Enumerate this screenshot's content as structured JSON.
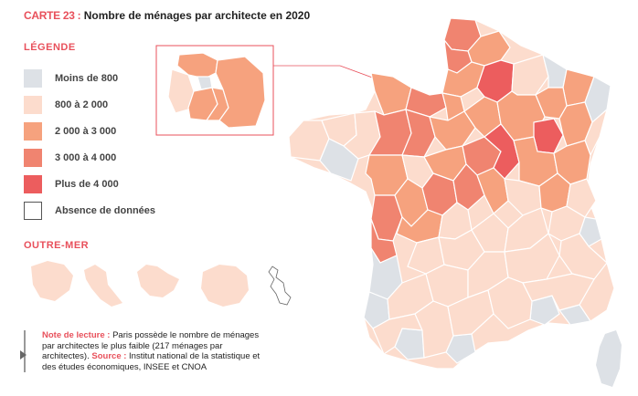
{
  "title": {
    "code": "CARTE 23 :",
    "text": "Nombre de ménages par architecte en 2020"
  },
  "legend": {
    "heading": "LÉGENDE",
    "items": [
      {
        "label": "Moins de 800",
        "color": "#dde1e6"
      },
      {
        "label": "800 à 2 000",
        "color": "#fcdccd"
      },
      {
        "label": "2 000 à 3 000",
        "color": "#f6a27e"
      },
      {
        "label": "3 000 à 4 000",
        "color": "#f08470"
      },
      {
        "label": "Plus de 4 000",
        "color": "#ec5d5e"
      },
      {
        "label": "Absence de données",
        "color": "#ffffff"
      }
    ]
  },
  "outremer": {
    "heading": "OUTRE-MER"
  },
  "note": {
    "label": "Note de lecture :",
    "text": "Paris possède le nombre de ménages par architectes le plus faible (217 ménages par architectes).",
    "source_label": "Source :",
    "source_text": "Institut national de la statistique et des études économiques, INSEE et CNOA"
  },
  "colors": {
    "accent": "#e8505b",
    "border": "#ffffff",
    "inset_frame": "#e8505b"
  }
}
